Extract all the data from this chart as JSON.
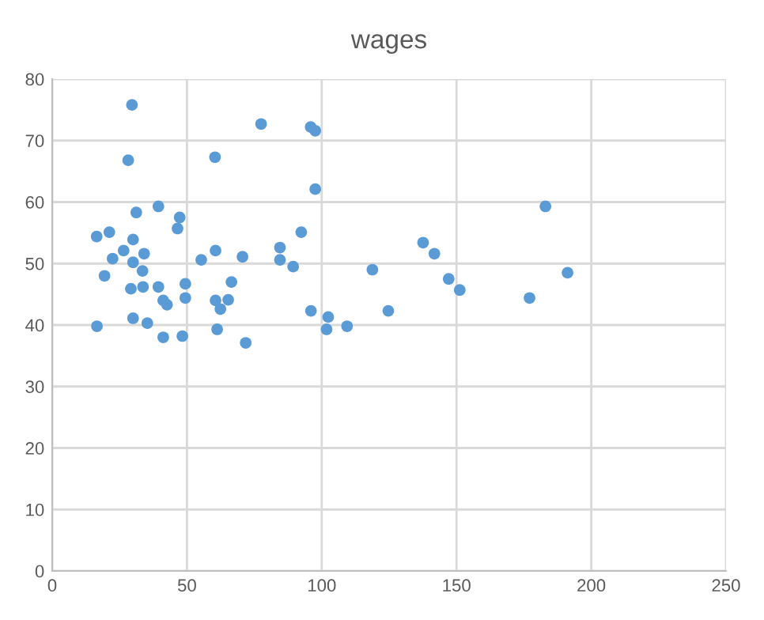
{
  "chart_data": {
    "type": "scatter",
    "title": "wages",
    "x": [
      29.6,
      77.5,
      28.2,
      60.4,
      31.2,
      39.4,
      47.3,
      46.5,
      16.5,
      21.2,
      30,
      26.5,
      34.1,
      22.4,
      30,
      33.5,
      19.4,
      55.3,
      60.6,
      70.6,
      84.5,
      84.5,
      29.2,
      33.7,
      39.4,
      49.4,
      66.5,
      41.2,
      42.6,
      49.4,
      60.6,
      65.3,
      62.4,
      16.6,
      30,
      35.3,
      41.2,
      48.3,
      61.2,
      71.8,
      95.9,
      97.6,
      97.6,
      92.4,
      89.4,
      118.8,
      137.6,
      141.8,
      147.1,
      151.2,
      96,
      102.4,
      101.8,
      109.4,
      124.7,
      183,
      191.2,
      177.1
    ],
    "values": [
      75.8,
      72.7,
      66.8,
      67.3,
      58.3,
      59.3,
      57.5,
      55.7,
      54.4,
      55.1,
      53.9,
      52.1,
      51.6,
      50.8,
      50.2,
      48.8,
      48,
      50.6,
      52.1,
      51.1,
      52.6,
      50.6,
      45.9,
      46.2,
      46.2,
      46.7,
      47,
      44,
      43.3,
      44.4,
      44,
      44.1,
      42.6,
      39.8,
      41.1,
      40.3,
      38,
      38.2,
      39.3,
      37.1,
      72.2,
      71.6,
      62.1,
      55.1,
      49.5,
      49,
      53.4,
      51.6,
      47.5,
      45.7,
      42.3,
      41.3,
      39.3,
      39.8,
      42.3,
      59.3,
      48.5,
      44.4
    ],
    "color": "#5b9bd5",
    "marker": "circle",
    "xlim": [
      0,
      250
    ],
    "xticks": [
      0,
      50,
      100,
      150,
      200,
      250
    ],
    "ylim": [
      0,
      80
    ],
    "yticks": [
      0,
      10,
      20,
      30,
      40,
      50,
      60,
      70,
      80
    ],
    "grid": true
  }
}
